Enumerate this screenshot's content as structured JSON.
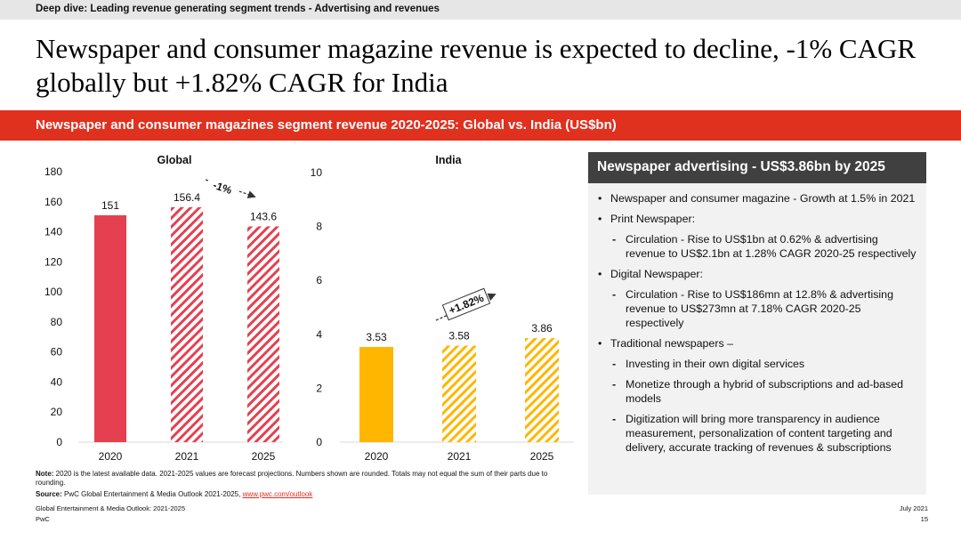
{
  "header": {
    "topbar": "Deep dive: Leading revenue generating segment trends - Advertising and revenues",
    "headline": "Newspaper and consumer magazine revenue is expected to decline, -1% CAGR globally but +1.82% CAGR for India",
    "subtitle": "Newspaper and consumer magazines segment revenue 2020-2025: Global vs. India (US$bn)"
  },
  "chart_data": [
    {
      "type": "bar",
      "title": "Global",
      "categories": [
        "2020",
        "2021",
        "2025"
      ],
      "values": [
        151,
        156.4,
        143.6
      ],
      "value_labels": [
        "151",
        "156.4",
        "143.6"
      ],
      "yticks": [
        "0",
        "20",
        "40",
        "60",
        "80",
        "100",
        "120",
        "140",
        "160",
        "180"
      ],
      "ylim": [
        0,
        180
      ],
      "forecast_from_index": 1,
      "annotation": "-1%",
      "grid": false,
      "color": "#e5404f"
    },
    {
      "type": "bar",
      "title": "India",
      "categories": [
        "2020",
        "2021",
        "2025"
      ],
      "values": [
        3.53,
        3.58,
        3.86
      ],
      "value_labels": [
        "3.53",
        "3.58",
        "3.86"
      ],
      "yticks": [
        "0",
        "2",
        "4",
        "6",
        "8",
        "10"
      ],
      "ylim": [
        0,
        10
      ],
      "forecast_from_index": 1,
      "annotation": "+1.82%",
      "grid": false,
      "color": "#ffb600"
    }
  ],
  "panel": {
    "title": "Newspaper advertising - US$3.86bn by 2025",
    "b1": "Newspaper and consumer magazine - Growth at 1.5% in 2021",
    "b2": "Print Newspaper:",
    "b2s1": "Circulation - Rise to US$1bn at 0.62% & advertising revenue to US$2.1bn at 1.28% CAGR 2020-25 respectively",
    "b3": "Digital Newspaper:",
    "b3s1": "Circulation - Rise to US$186mn at 12.8% & advertising revenue to US$273mn at 7.18% CAGR 2020-25 respectively",
    "b4": "Traditional newspapers –",
    "b4s1": "Investing in their own digital services",
    "b4s2": "Monetize through a hybrid of subscriptions and ad-based models",
    "b4s3": "Digitization will bring more transparency in audience measurement, personalization of content targeting and delivery, accurate tracking of revenues & subscriptions"
  },
  "footer": {
    "note_label": "Note:",
    "note": " 2020 is the latest available data. 2021-2025 values are forecast projections. Numbers shown are rounded. Totals may not equal the sum of their parts due to rounding.",
    "source_label": "Source:",
    "source": " PwC Global Entertainment & Media Outlook 2021-2025, ",
    "source_link": "www.pwc.com/outlook",
    "report": "Global Entertainment & Media Outlook: 2021-2025",
    "brand": "PwC",
    "date": "July 2021",
    "page": "15"
  }
}
